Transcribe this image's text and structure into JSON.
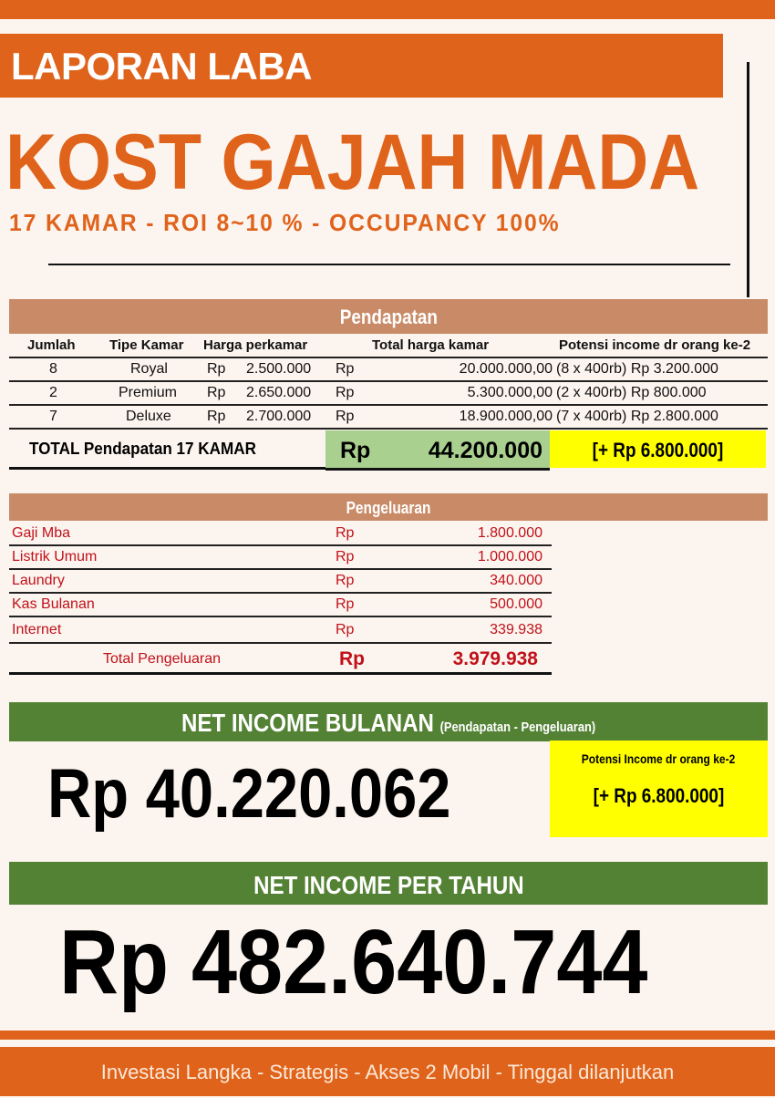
{
  "header": {
    "report_label": "LAPORAN LABA",
    "title": "KOST GAJAH MADA",
    "subtitle": "17 KAMAR  -  ROI 8~10 %  -  OCCUPANCY  100%"
  },
  "colors": {
    "orange": "#e0631c",
    "section_header": "#c98b67",
    "green": "#548235",
    "light_green": "#a9d08e",
    "yellow": "#ffff00",
    "expense_red": "#c0111a"
  },
  "income": {
    "title": "Pendapatan",
    "columns": [
      "Jumlah",
      "Tipe Kamar",
      "Harga perkamar",
      "Total harga kamar",
      "Potensi income dr orang ke-2"
    ],
    "rows": [
      {
        "qty": "8",
        "type": "Royal",
        "cur1": "Rp",
        "price": "2.500.000",
        "cur2": "Rp",
        "total": "20.000.000,00",
        "potential": "(8 x 400rb) Rp 3.200.000"
      },
      {
        "qty": "2",
        "type": "Premium",
        "cur1": "Rp",
        "price": "2.650.000",
        "cur2": "Rp",
        "total": "5.300.000,00",
        "potential": "(2 x 400rb) Rp 800.000"
      },
      {
        "qty": "7",
        "type": "Deluxe",
        "cur1": "Rp",
        "price": "2.700.000",
        "cur2": "Rp",
        "total": "18.900.000,00",
        "potential": "(7 x 400rb) Rp 2.800.000"
      }
    ],
    "total_label": "TOTAL Pendapatan 17 KAMAR",
    "total_currency": "Rp",
    "total_value": "44.200.000",
    "total_potential": "[+ Rp 6.800.000]"
  },
  "expenses": {
    "title": "Pengeluaran",
    "rows": [
      {
        "label": "Gaji Mba",
        "currency": "Rp",
        "value": "1.800.000"
      },
      {
        "label": "Listrik Umum",
        "currency": "Rp",
        "value": "1.000.000"
      },
      {
        "label": "Laundry",
        "currency": "Rp",
        "value": "340.000"
      },
      {
        "label": "Kas Bulanan",
        "currency": "Rp",
        "value": "500.000"
      },
      {
        "label": "Internet",
        "currency": "Rp",
        "value": "339.938"
      }
    ],
    "total_label": "Total Pengeluaran",
    "total_currency": "Rp",
    "total_value": "3.979.938"
  },
  "monthly": {
    "title": "NET INCOME BULANAN",
    "note": "(Pendapatan - Pengeluaran)",
    "value": "Rp 40.220.062",
    "potential_label": "Potensi Income dr orang ke-2",
    "potential_value": "[+ Rp 6.800.000]"
  },
  "yearly": {
    "title": "NET INCOME PER TAHUN",
    "value": "Rp 482.640.744"
  },
  "footer": {
    "tagline": "Investasi Langka - Strategis - Akses 2 Mobil - Tinggal dilanjutkan"
  }
}
